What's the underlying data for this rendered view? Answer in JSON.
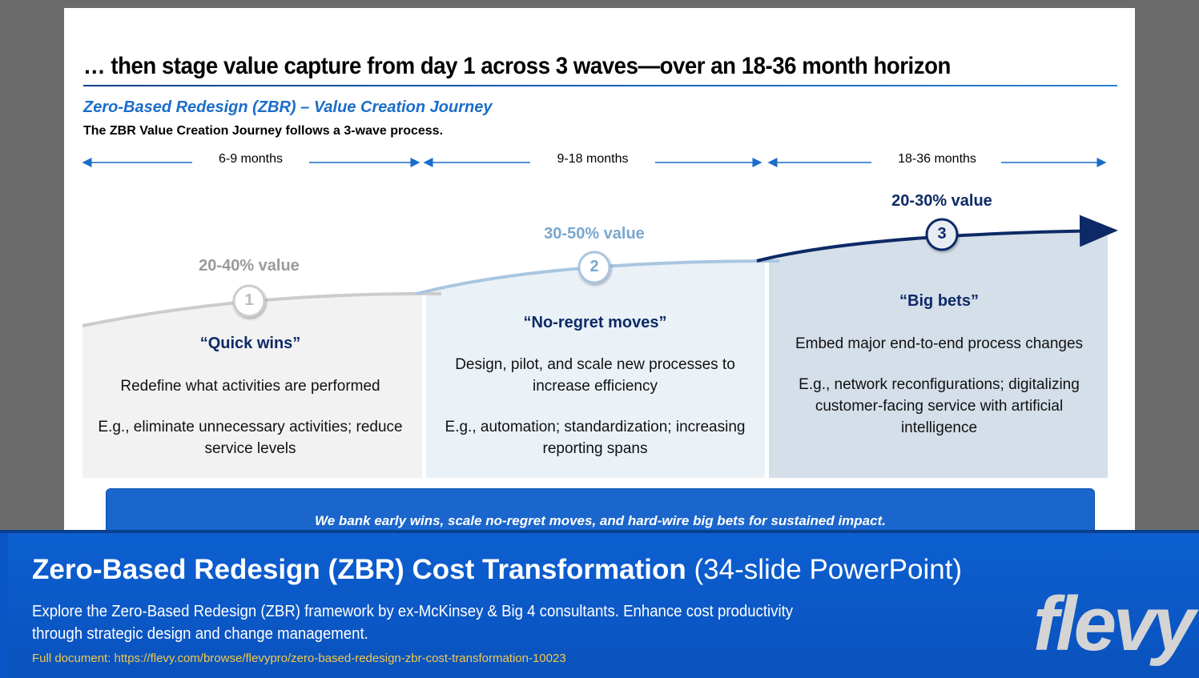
{
  "slide": {
    "title": "… then stage value capture from day 1 across 3 waves—over an 18-36 month horizon",
    "subtitle": "Zero-Based Redesign (ZBR) – Value Creation Journey",
    "intro": "The ZBR Value Creation Journey follows a 3-wave process.",
    "timeline": [
      "6-9 months",
      "9-18 months",
      "18-36 months"
    ],
    "waves": [
      {
        "number": "1",
        "value": "20-40% value",
        "heading": "“Quick wins”",
        "description": "Redefine what activities are performed",
        "example": "E.g., eliminate unnecessary activities; reduce service levels"
      },
      {
        "number": "2",
        "value": "30-50% value",
        "heading": "“No-regret moves”",
        "description": "Design, pilot, and scale new processes to increase efficiency",
        "example": "E.g., automation; standardization; increasing reporting spans"
      },
      {
        "number": "3",
        "value": "20-30% value",
        "heading": "“Big bets”",
        "description": "Embed major end-to-end process changes",
        "example": "E.g., network reconfigurations; digitalizing customer-facing service with artificial intelligence"
      }
    ],
    "callout": "We bank early wins, scale no-regret moves, and hard-wire big bets for sustained impact.",
    "colors": {
      "wave1_panel": "#f2f2f2",
      "wave2_panel": "#eaf1f7",
      "wave3_panel": "#d5dfe9",
      "wave1_curve": "#cccccc",
      "wave2_curve": "#a9c6e0",
      "wave3_curve": "#0d2a66",
      "accent": "#1a6dc9"
    }
  },
  "banner": {
    "title_bold": "Zero-Based Redesign (ZBR) Cost Transformation",
    "title_light": "(34-slide PowerPoint)",
    "description": "Explore the Zero-Based Redesign (ZBR) framework by ex-McKinsey & Big 4 consultants. Enhance cost productivity through strategic design and change management.",
    "link": "Full document: https://flevy.com/browse/flevypro/zero-based-redesign-zbr-cost-transformation-10023",
    "logo": "flevy"
  }
}
